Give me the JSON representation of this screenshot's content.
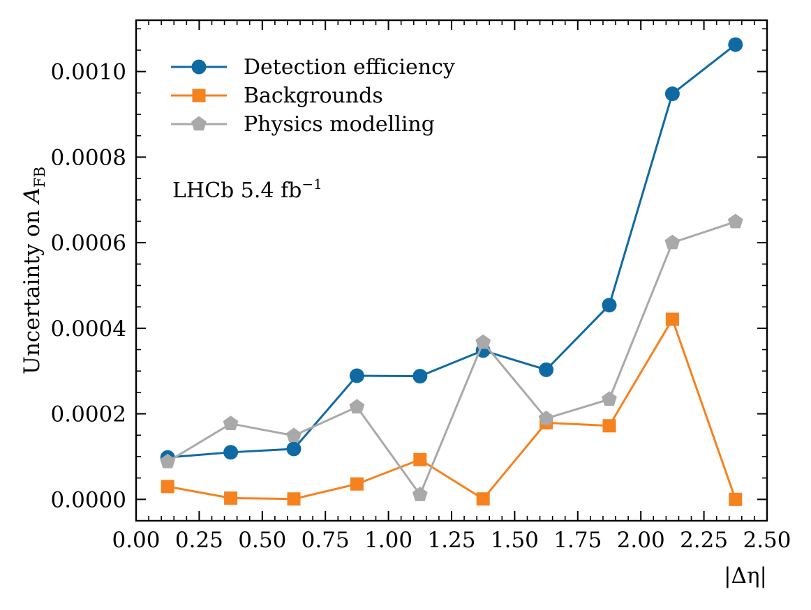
{
  "chart_data": {
    "type": "line",
    "title": "",
    "xlabel": "|Δη|",
    "ylabel": {
      "prefix": "Uncertainty on ",
      "var": "A",
      "sub": "FB"
    },
    "xlim": [
      0.0,
      2.5
    ],
    "ylim": [
      -5e-05,
      0.00112
    ],
    "x": [
      0.125,
      0.375,
      0.625,
      0.875,
      1.125,
      1.375,
      1.625,
      1.875,
      2.125,
      2.375
    ],
    "xticks": [
      0.0,
      0.25,
      0.5,
      0.75,
      1.0,
      1.25,
      1.5,
      1.75,
      2.0,
      2.25,
      2.5
    ],
    "xtick_labels": [
      "0.00",
      "0.25",
      "0.50",
      "0.75",
      "1.00",
      "1.25",
      "1.50",
      "1.75",
      "2.00",
      "2.25",
      "2.50"
    ],
    "yticks": [
      0.0,
      0.0002,
      0.0004,
      0.0006,
      0.0008,
      0.001
    ],
    "ytick_labels": [
      "0.0000",
      "0.0002",
      "0.0004",
      "0.0006",
      "0.0008",
      "0.0010"
    ],
    "grid": false,
    "legend_position": "top-left",
    "series": [
      {
        "name": "Detection efficiency",
        "color": "#0f6aa3",
        "marker": "circle",
        "values": [
          9.8e-05,
          0.00011,
          0.000118,
          0.000289,
          0.000288,
          0.000348,
          0.000303,
          0.000454,
          0.000948,
          0.001063
        ]
      },
      {
        "name": "Backgrounds",
        "color": "#f5821f",
        "marker": "square",
        "values": [
          3e-05,
          3e-06,
          1e-06,
          3.6e-05,
          9.3e-05,
          1e-06,
          0.000179,
          0.000172,
          0.000421,
          0.0
        ]
      },
      {
        "name": "Physics modelling",
        "color": "#a9a9a9",
        "marker": "pentagon",
        "values": [
          8.8e-05,
          0.000177,
          0.000149,
          0.000216,
          1.1e-05,
          0.000367,
          0.000189,
          0.000234,
          0.0006,
          0.000649
        ]
      }
    ],
    "annotation": {
      "experiment": "LHCb",
      "value": "5.4",
      "unit": "fb",
      "superscript": "−1"
    }
  }
}
